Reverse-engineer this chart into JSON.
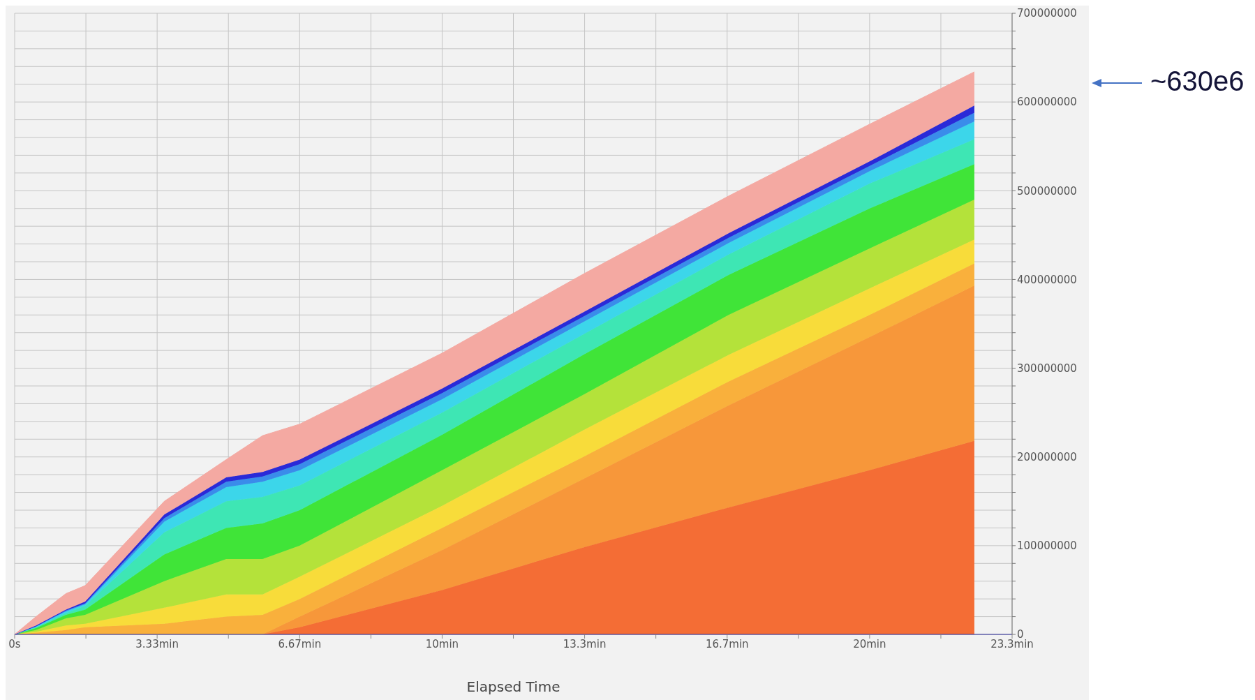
{
  "chart_data": {
    "type": "area",
    "stacked": true,
    "xlabel": "Elapsed Time",
    "grid": true,
    "legend": false,
    "x": [
      0,
      0.5,
      1.2,
      1.65,
      3.5,
      4.95,
      5.8,
      6.67,
      10,
      13.3,
      16.7,
      20,
      22.45
    ],
    "xlim": [
      0,
      23.333
    ],
    "xticks": [
      {
        "value": 0,
        "label": "0s"
      },
      {
        "value": 1.667,
        "label": null
      },
      {
        "value": 3.333,
        "label": "3.33min"
      },
      {
        "value": 5,
        "label": null
      },
      {
        "value": 6.667,
        "label": "6.67min"
      },
      {
        "value": 8.333,
        "label": null
      },
      {
        "value": 10,
        "label": "10min"
      },
      {
        "value": 11.667,
        "label": null
      },
      {
        "value": 13.333,
        "label": "13.3min"
      },
      {
        "value": 15,
        "label": null
      },
      {
        "value": 16.667,
        "label": "16.7min"
      },
      {
        "value": 18.333,
        "label": null
      },
      {
        "value": 20,
        "label": "20min"
      },
      {
        "value": 21.667,
        "label": null
      },
      {
        "value": 23.333,
        "label": "23.3min"
      }
    ],
    "ylim": [
      0,
      700000000
    ],
    "yticks": [
      0,
      {
        "value": 20000000,
        "label": null
      },
      {
        "value": 40000000,
        "label": null
      },
      {
        "value": 60000000,
        "label": null
      },
      {
        "value": 80000000,
        "label": null
      },
      100000000,
      {
        "value": 120000000,
        "label": null
      },
      {
        "value": 140000000,
        "label": null
      },
      {
        "value": 160000000,
        "label": null
      },
      {
        "value": 180000000,
        "label": null
      },
      200000000,
      {
        "value": 220000000,
        "label": null
      },
      {
        "value": 240000000,
        "label": null
      },
      {
        "value": 260000000,
        "label": null
      },
      {
        "value": 280000000,
        "label": null
      },
      300000000,
      {
        "value": 320000000,
        "label": null
      },
      {
        "value": 340000000,
        "label": null
      },
      {
        "value": 360000000,
        "label": null
      },
      {
        "value": 380000000,
        "label": null
      },
      400000000,
      {
        "value": 420000000,
        "label": null
      },
      {
        "value": 440000000,
        "label": null
      },
      {
        "value": 460000000,
        "label": null
      },
      {
        "value": 480000000,
        "label": null
      },
      500000000,
      {
        "value": 520000000,
        "label": null
      },
      {
        "value": 540000000,
        "label": null
      },
      {
        "value": 560000000,
        "label": null
      },
      {
        "value": 580000000,
        "label": null
      },
      600000000,
      {
        "value": 620000000,
        "label": null
      },
      {
        "value": 640000000,
        "label": null
      },
      {
        "value": 660000000,
        "label": null
      },
      {
        "value": 680000000,
        "label": null
      },
      700000000
    ],
    "series": [
      {
        "color": "#f46d35",
        "values": [
          0,
          0,
          0,
          0,
          0,
          0,
          0,
          8000000,
          50000000,
          98000000,
          143000000,
          185000000,
          218000000
        ]
      },
      {
        "color": "#f7973a",
        "values": [
          0,
          0,
          0,
          0,
          0,
          0,
          0,
          12000000,
          45000000,
          77000000,
          115000000,
          150000000,
          175000000
        ]
      },
      {
        "color": "#f9b03c",
        "values": [
          0,
          2000000,
          5000000,
          8000000,
          12000000,
          20000000,
          22000000,
          20000000,
          25000000,
          25000000,
          27000000,
          25000000,
          25000000
        ]
      },
      {
        "color": "#f8dc3a",
        "values": [
          0,
          1000000,
          5000000,
          4000000,
          18000000,
          25000000,
          23000000,
          25000000,
          25000000,
          30000000,
          30000000,
          30000000,
          27000000
        ]
      },
      {
        "color": "#b4e23a",
        "values": [
          0,
          2000000,
          8000000,
          10000000,
          30000000,
          40000000,
          40000000,
          35000000,
          40000000,
          40000000,
          45000000,
          45000000,
          45000000
        ]
      },
      {
        "color": "#40e438",
        "values": [
          0,
          2000000,
          4000000,
          6000000,
          30000000,
          35000000,
          40000000,
          40000000,
          40000000,
          45000000,
          45000000,
          45000000,
          40000000
        ]
      },
      {
        "color": "#3ee6b4",
        "values": [
          0,
          1000000,
          2000000,
          4000000,
          25000000,
          30000000,
          30000000,
          28000000,
          25000000,
          23000000,
          23000000,
          28000000,
          28000000
        ]
      },
      {
        "color": "#3cd6ea",
        "values": [
          0,
          1000000,
          2000000,
          2000000,
          12000000,
          16000000,
          17000000,
          17000000,
          15000000,
          14000000,
          13000000,
          14000000,
          20000000
        ]
      },
      {
        "color": "#3a8cea",
        "values": [
          0,
          0,
          1000000,
          1000000,
          4000000,
          6000000,
          6000000,
          7000000,
          7000000,
          6000000,
          6000000,
          6000000,
          10000000
        ]
      },
      {
        "color": "#2a2ad8",
        "values": [
          0,
          1000000,
          1000000,
          2000000,
          4000000,
          5000000,
          5000000,
          5000000,
          5000000,
          5000000,
          5000000,
          5000000,
          8000000
        ]
      },
      {
        "color": "#f4a9a2",
        "values": [
          0,
          10000000,
          18000000,
          18000000,
          15000000,
          20000000,
          41000000,
          40000000,
          40000000,
          43000000,
          42000000,
          42000000,
          38000000
        ]
      }
    ],
    "annotations": [
      "~630e6"
    ]
  }
}
